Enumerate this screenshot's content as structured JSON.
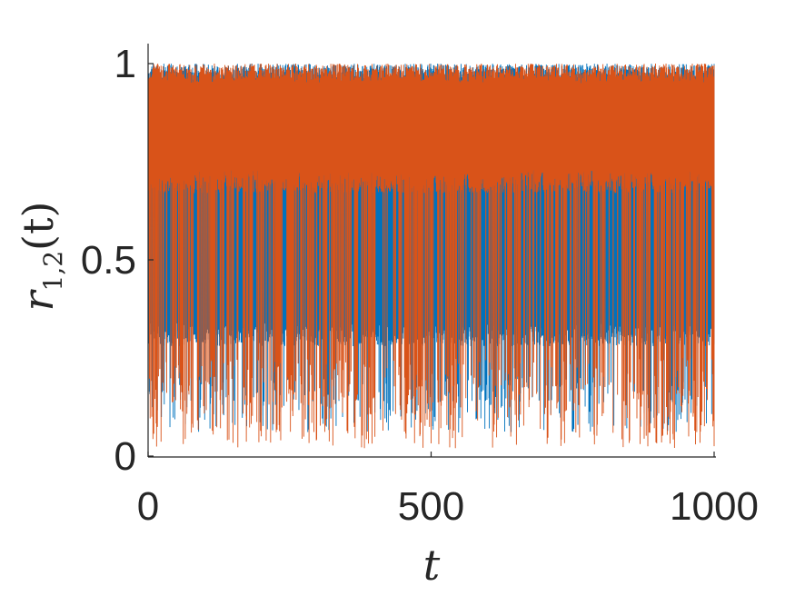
{
  "chart_data": {
    "type": "line",
    "title": "",
    "xlabel": "t",
    "ylabel": {
      "base": "r",
      "subscript": "1,2",
      "argument": "(t)"
    },
    "xlim": [
      0,
      1000
    ],
    "ylim": [
      0,
      1
    ],
    "xticks": [
      {
        "value": 0,
        "label": "0"
      },
      {
        "value": 500,
        "label": "500"
      },
      {
        "value": 1000,
        "label": "1000"
      }
    ],
    "yticks": [
      {
        "value": 0,
        "label": "0"
      },
      {
        "value": 0.5,
        "label": "0.5"
      },
      {
        "value": 1,
        "label": "1"
      }
    ],
    "grid": false,
    "legend": "none",
    "series": [
      {
        "color": "#0072BD",
        "band": [
          0.28,
          1.0
        ],
        "lower_envelope": [
          0.06,
          0.2
        ],
        "dip_frequency": 0.2
      },
      {
        "color": "#D95319",
        "band": [
          0.67,
          1.0
        ],
        "lower_envelope": [
          0.02,
          0.25
        ],
        "dip_frequency": 0.35
      }
    ]
  }
}
